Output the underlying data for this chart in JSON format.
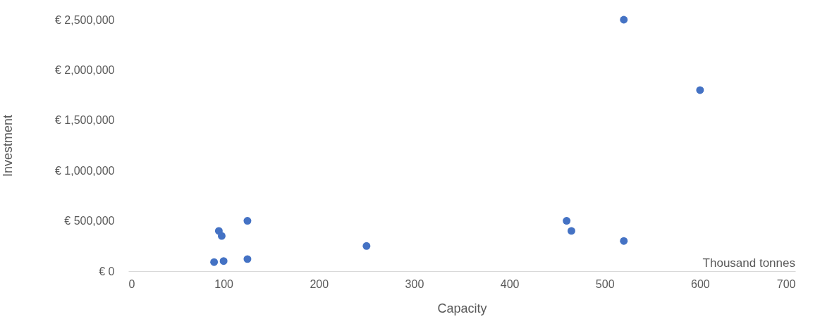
{
  "chart_data": {
    "type": "scatter",
    "xlabel": "Capacity",
    "ylabel": "Investment",
    "annotations": [
      "Thousand tonnes"
    ],
    "x": [
      90,
      100,
      95,
      98,
      125,
      125,
      250,
      460,
      465,
      520,
      520,
      600
    ],
    "values": [
      90000,
      100000,
      400000,
      350000,
      500000,
      120000,
      250000,
      500000,
      400000,
      300000,
      2500000,
      1800000
    ],
    "color": "#4472c4",
    "marker": "circle",
    "grid": false,
    "xlim": [
      0,
      700
    ],
    "xticks": [
      0,
      100,
      200,
      300,
      400,
      500,
      600,
      700
    ],
    "ylim": [
      0,
      2500000
    ],
    "yticks": [
      {
        "value": 0,
        "label": "€ 0"
      },
      {
        "value": 500000,
        "label": "€ 500,000"
      },
      {
        "value": 1000000,
        "label": "€ 1,000,000"
      },
      {
        "value": 1500000,
        "label": "€ 1,500,000"
      },
      {
        "value": 2000000,
        "label": "€ 2,000,000"
      },
      {
        "value": 2500000,
        "label": "€ 2,500,000"
      }
    ]
  }
}
